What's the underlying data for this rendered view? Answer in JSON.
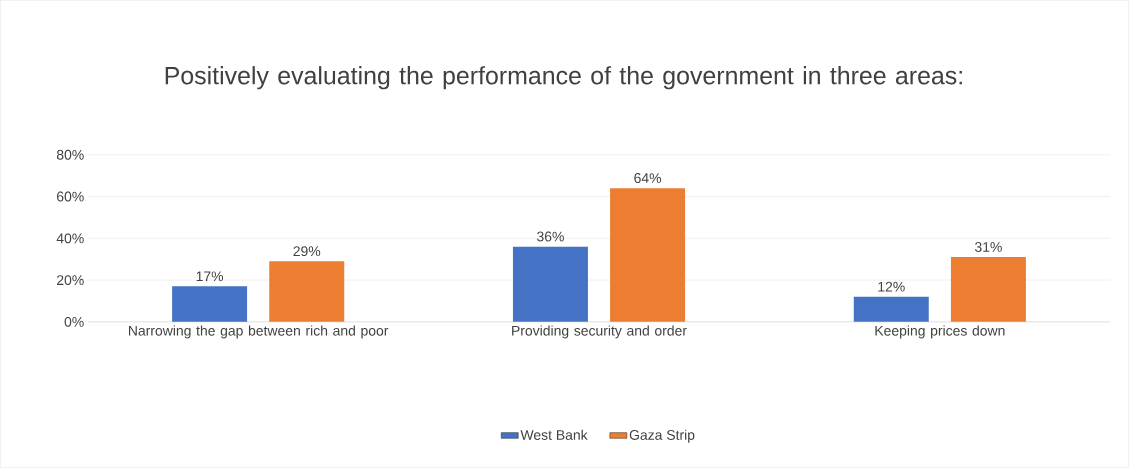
{
  "chart_data": {
    "type": "bar",
    "title": "Positively evaluating the performance of the government in three areas:",
    "categories": [
      "Narrowing the gap between rich and poor",
      "Providing security and order",
      "Keeping prices down"
    ],
    "series": [
      {
        "name": "West Bank",
        "color": "#4472c4",
        "values": [
          17,
          36,
          12
        ],
        "value_labels": [
          "17%",
          "36%",
          "12%"
        ]
      },
      {
        "name": "Gaza Strip",
        "color": "#ed7d31",
        "values": [
          29,
          64,
          31
        ],
        "value_labels": [
          "29%",
          "64%",
          "31%"
        ]
      }
    ],
    "ylim": [
      0,
      80
    ],
    "yticks": [
      {
        "value": 0,
        "label": "0%"
      },
      {
        "value": 20,
        "label": "20%"
      },
      {
        "value": 40,
        "label": "40%"
      },
      {
        "value": 60,
        "label": "60%"
      },
      {
        "value": 80,
        "label": "80%"
      }
    ],
    "grid": "y",
    "legend": "bottom"
  }
}
